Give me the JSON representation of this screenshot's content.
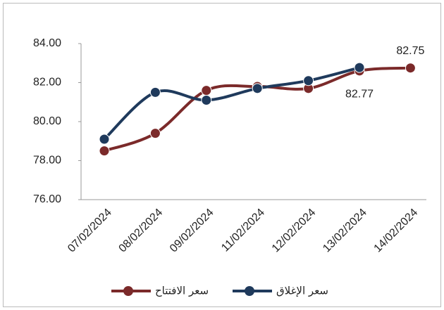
{
  "chart_data": {
    "type": "line",
    "categories": [
      "07/02/2024",
      "08/02/2024",
      "09/02/2024",
      "11/02/2024",
      "12/02/2024",
      "13/02/2024",
      "14/02/2024"
    ],
    "series": [
      {
        "name": "سعر الافتتاح",
        "color": "#7b2a2a",
        "values": [
          78.5,
          79.4,
          81.6,
          81.8,
          81.7,
          82.6,
          82.75
        ],
        "value_labels": [
          null,
          null,
          null,
          null,
          null,
          null,
          "82.75"
        ]
      },
      {
        "name": "سعر الإغلاق",
        "color": "#1f3a5c",
        "values": [
          79.1,
          81.5,
          81.1,
          81.7,
          82.1,
          82.77,
          null
        ],
        "value_labels": [
          null,
          null,
          null,
          null,
          null,
          "82.77",
          null
        ]
      }
    ],
    "ylim": [
      76,
      84
    ],
    "yticks": [
      {
        "value": 76,
        "label": "76.00"
      },
      {
        "value": 78,
        "label": "78.00"
      },
      {
        "value": 80,
        "label": "80.00"
      },
      {
        "value": 82,
        "label": "82.00"
      },
      {
        "value": 84,
        "label": "84.00"
      }
    ],
    "smooth": true,
    "legend": "bottom"
  }
}
